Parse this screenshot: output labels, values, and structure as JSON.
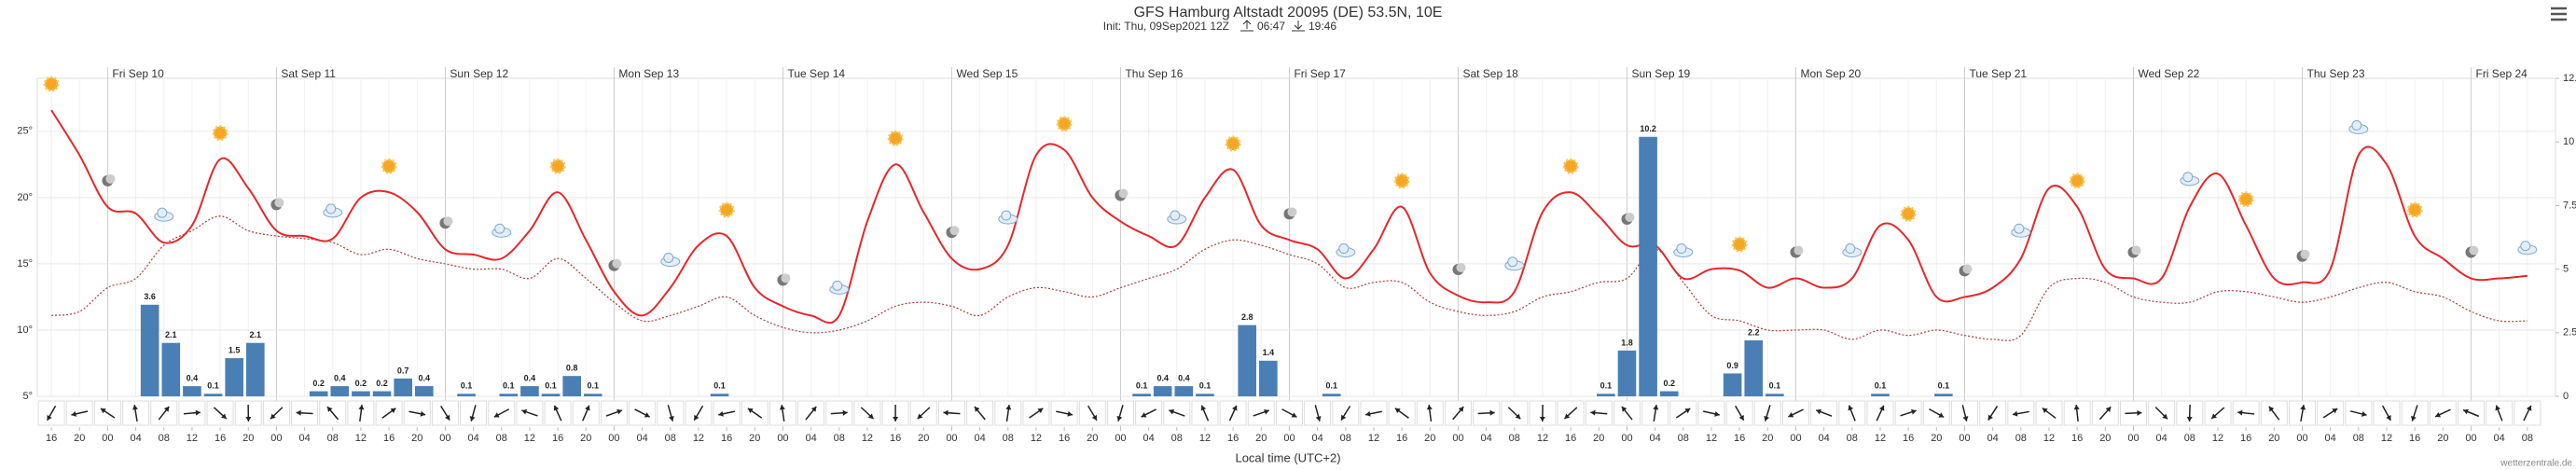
{
  "chart_data": {
    "type": "line",
    "title": "GFS Hamburg Altstadt 20095 (DE) 53.5N, 10E",
    "subtitle": "Init: Thu, 09Sep2021 12Z",
    "sunrise": "06:47",
    "sunset": "19:46",
    "x_label": "Local time (UTC+2)",
    "credit": "wetterzentrale.de",
    "xlim": [
      -2,
      356
    ],
    "ylim": [
      5,
      29
    ],
    "y2lim": [
      0,
      12.5
    ],
    "yticks": [
      {
        "value": 5,
        "label": "5°"
      },
      {
        "value": 10,
        "label": "10°"
      },
      {
        "value": 15,
        "label": "15°"
      },
      {
        "value": 20,
        "label": "20°"
      },
      {
        "value": 25,
        "label": "25°"
      }
    ],
    "y2ticks": [
      0,
      2.5,
      5,
      7.5,
      10,
      12.5
    ],
    "grid": true,
    "day_ticks": [
      {
        "value": 8,
        "label": "Fri Sep 10"
      },
      {
        "value": 32,
        "label": "Sat Sep 11"
      },
      {
        "value": 56,
        "label": "Sun Sep 12"
      },
      {
        "value": 80,
        "label": "Mon Sep 13"
      },
      {
        "value": 104,
        "label": "Tue Sep 14"
      },
      {
        "value": 128,
        "label": "Wed Sep 15"
      },
      {
        "value": 152,
        "label": "Thu Sep 16"
      },
      {
        "value": 176,
        "label": "Fri Sep 17"
      },
      {
        "value": 200,
        "label": "Sat Sep 18"
      },
      {
        "value": 224,
        "label": "Sun Sep 19"
      },
      {
        "value": 248,
        "label": "Mon Sep 20"
      },
      {
        "value": 272,
        "label": "Tue Sep 21"
      },
      {
        "value": 296,
        "label": "Wed Sep 22"
      },
      {
        "value": 320,
        "label": "Thu Sep 23"
      },
      {
        "value": 344,
        "label": "Fri Sep 24"
      }
    ],
    "xticks": [
      {
        "value": 0,
        "label": "16"
      },
      {
        "value": 4,
        "label": "20"
      },
      {
        "value": 8,
        "label": "00"
      },
      {
        "value": 12,
        "label": "04"
      },
      {
        "value": 16,
        "label": "08"
      },
      {
        "value": 20,
        "label": "12"
      },
      {
        "value": 24,
        "label": "16"
      },
      {
        "value": 28,
        "label": "20"
      },
      {
        "value": 32,
        "label": "00"
      },
      {
        "value": 36,
        "label": "04"
      },
      {
        "value": 40,
        "label": "08"
      },
      {
        "value": 44,
        "label": "12"
      },
      {
        "value": 48,
        "label": "16"
      },
      {
        "value": 52,
        "label": "20"
      },
      {
        "value": 56,
        "label": "00"
      },
      {
        "value": 60,
        "label": "04"
      },
      {
        "value": 64,
        "label": "08"
      },
      {
        "value": 68,
        "label": "12"
      },
      {
        "value": 72,
        "label": "16"
      },
      {
        "value": 76,
        "label": "20"
      },
      {
        "value": 80,
        "label": "00"
      },
      {
        "value": 84,
        "label": "04"
      },
      {
        "value": 88,
        "label": "08"
      },
      {
        "value": 92,
        "label": "12"
      },
      {
        "value": 96,
        "label": "16"
      },
      {
        "value": 100,
        "label": "20"
      },
      {
        "value": 104,
        "label": "00"
      },
      {
        "value": 108,
        "label": "04"
      },
      {
        "value": 112,
        "label": "08"
      },
      {
        "value": 116,
        "label": "12"
      },
      {
        "value": 120,
        "label": "16"
      },
      {
        "value": 124,
        "label": "20"
      },
      {
        "value": 128,
        "label": "00"
      },
      {
        "value": 132,
        "label": "04"
      },
      {
        "value": 136,
        "label": "08"
      },
      {
        "value": 140,
        "label": "12"
      },
      {
        "value": 144,
        "label": "16"
      },
      {
        "value": 148,
        "label": "20"
      },
      {
        "value": 152,
        "label": "00"
      },
      {
        "value": 156,
        "label": "04"
      },
      {
        "value": 160,
        "label": "08"
      },
      {
        "value": 164,
        "label": "12"
      },
      {
        "value": 168,
        "label": "16"
      },
      {
        "value": 172,
        "label": "20"
      },
      {
        "value": 176,
        "label": "00"
      },
      {
        "value": 180,
        "label": "04"
      },
      {
        "value": 184,
        "label": "08"
      },
      {
        "value": 188,
        "label": "12"
      },
      {
        "value": 192,
        "label": "16"
      },
      {
        "value": 196,
        "label": "20"
      },
      {
        "value": 200,
        "label": "00"
      },
      {
        "value": 204,
        "label": "04"
      },
      {
        "value": 208,
        "label": "08"
      },
      {
        "value": 212,
        "label": "12"
      },
      {
        "value": 216,
        "label": "16"
      },
      {
        "value": 220,
        "label": "20"
      },
      {
        "value": 224,
        "label": "00"
      },
      {
        "value": 228,
        "label": "04"
      },
      {
        "value": 232,
        "label": "08"
      },
      {
        "value": 236,
        "label": "12"
      },
      {
        "value": 240,
        "label": "16"
      },
      {
        "value": 244,
        "label": "20"
      },
      {
        "value": 248,
        "label": "00"
      },
      {
        "value": 252,
        "label": "04"
      },
      {
        "value": 256,
        "label": "08"
      },
      {
        "value": 260,
        "label": "12"
      },
      {
        "value": 264,
        "label": "16"
      },
      {
        "value": 268,
        "label": "20"
      },
      {
        "value": 272,
        "label": "00"
      },
      {
        "value": 276,
        "label": "04"
      },
      {
        "value": 280,
        "label": "08"
      },
      {
        "value": 284,
        "label": "12"
      },
      {
        "value": 288,
        "label": "16"
      },
      {
        "value": 292,
        "label": "20"
      },
      {
        "value": 296,
        "label": "00"
      },
      {
        "value": 300,
        "label": "04"
      },
      {
        "value": 304,
        "label": "08"
      },
      {
        "value": 308,
        "label": "12"
      },
      {
        "value": 312,
        "label": "16"
      },
      {
        "value": 316,
        "label": "20"
      },
      {
        "value": 320,
        "label": "00"
      },
      {
        "value": 324,
        "label": "04"
      },
      {
        "value": 328,
        "label": "08"
      },
      {
        "value": 332,
        "label": "12"
      },
      {
        "value": 336,
        "label": "16"
      },
      {
        "value": 340,
        "label": "20"
      },
      {
        "value": 344,
        "label": "00"
      },
      {
        "value": 348,
        "label": "04"
      },
      {
        "value": 352,
        "label": "08"
      }
    ],
    "x": [
      0,
      4,
      8,
      12,
      16,
      20,
      24,
      28,
      32,
      36,
      40,
      44,
      48,
      52,
      56,
      60,
      64,
      68,
      72,
      76,
      80,
      84,
      88,
      92,
      96,
      100,
      104,
      108,
      112,
      116,
      120,
      124,
      128,
      132,
      136,
      140,
      144,
      148,
      152,
      156,
      160,
      164,
      168,
      172,
      176,
      180,
      184,
      188,
      192,
      196,
      200,
      204,
      208,
      212,
      216,
      220,
      224,
      228,
      232,
      236,
      240,
      244,
      248,
      252,
      256,
      260,
      264,
      268,
      272,
      276,
      280,
      284,
      288,
      292,
      296,
      300,
      304,
      308,
      312,
      316,
      320,
      324,
      328,
      332,
      336,
      340,
      344,
      348,
      352
    ],
    "series": [
      {
        "type": "line",
        "color": "#e8262a",
        "values": [
          26.6,
          23.2,
          19.3,
          18.8,
          16.6,
          17.9,
          22.9,
          20.7,
          17.5,
          17.1,
          16.9,
          20.0,
          20.4,
          18.9,
          16.1,
          15.7,
          15.4,
          17.5,
          20.4,
          16.8,
          12.9,
          11.1,
          13.2,
          16.4,
          17.1,
          13.2,
          11.8,
          11.1,
          11.1,
          18.2,
          22.5,
          18.9,
          15.4,
          14.6,
          16.4,
          23.2,
          23.6,
          20.0,
          18.2,
          17.1,
          16.4,
          20.0,
          22.1,
          17.9,
          16.8,
          16.1,
          13.9,
          16.1,
          19.3,
          14.3,
          12.6,
          12.1,
          12.9,
          18.9,
          20.4,
          18.6,
          16.4,
          16.4,
          13.9,
          14.6,
          14.5,
          13.2,
          13.9,
          13.2,
          13.9,
          17.9,
          16.8,
          12.5,
          12.5,
          13.2,
          15.4,
          20.7,
          19.3,
          14.6,
          13.9,
          13.9,
          19.3,
          21.8,
          17.9,
          13.9,
          13.6,
          14.6,
          23.2,
          22.5,
          17.1,
          15.4,
          13.9,
          13.9,
          14.1
        ]
      },
      {
        "type": "dotted",
        "color": "#b03a3a",
        "values": [
          11.1,
          11.4,
          13.2,
          13.9,
          16.4,
          17.5,
          18.6,
          17.5,
          17.1,
          16.9,
          16.6,
          15.7,
          16.1,
          15.4,
          15.0,
          14.6,
          14.6,
          13.9,
          15.4,
          13.9,
          12.1,
          10.7,
          11.1,
          11.8,
          12.5,
          11.1,
          10.2,
          9.8,
          10.0,
          10.7,
          11.8,
          12.1,
          11.8,
          11.1,
          12.5,
          13.2,
          12.9,
          12.5,
          13.2,
          13.9,
          14.6,
          16.1,
          16.8,
          16.4,
          15.7,
          15.0,
          13.2,
          13.6,
          13.6,
          12.1,
          11.4,
          11.1,
          11.4,
          12.5,
          12.9,
          13.6,
          13.9,
          16.1,
          13.6,
          11.1,
          10.7,
          10.0,
          10.0,
          10.0,
          9.3,
          10.0,
          9.6,
          10.0,
          9.6,
          9.3,
          9.6,
          13.2,
          13.9,
          13.6,
          12.5,
          12.1,
          12.1,
          12.9,
          12.9,
          12.5,
          12.1,
          12.5,
          13.2,
          13.6,
          12.9,
          12.5,
          11.4,
          10.7,
          10.7
        ]
      },
      {
        "type": "bar",
        "axis": "y2",
        "color": "#4a7fb5",
        "x": [
          14,
          17,
          20,
          23,
          26,
          29,
          38,
          41,
          44,
          47,
          50,
          53,
          59,
          65,
          68,
          71,
          74,
          77,
          95,
          155,
          158,
          161,
          164,
          170,
          173,
          182,
          221,
          224,
          227,
          230,
          239,
          242,
          245,
          260,
          269
        ],
        "values": [
          3.6,
          2.1,
          0.4,
          0.1,
          1.5,
          2.1,
          0.2,
          0.4,
          0.2,
          0.2,
          0.7,
          0.4,
          0.1,
          0.1,
          0.4,
          0.1,
          0.8,
          0.1,
          0.1,
          0.1,
          0.4,
          0.4,
          0.1,
          2.8,
          1.4,
          0.1,
          0.1,
          1.8,
          10.2,
          0.2,
          0.9,
          2.2,
          0.1,
          0.1,
          0.1
        ]
      }
    ]
  }
}
